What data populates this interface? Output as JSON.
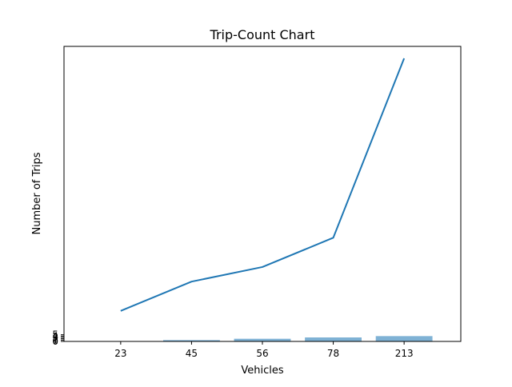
{
  "chart_data": {
    "type": "bar",
    "title": "Trip-Count Chart",
    "xlabel": "Vehicles",
    "ylabel": "Number of Trips",
    "categories": [
      "23",
      "45",
      "56",
      "78",
      "213"
    ],
    "series": [
      {
        "type": "bar",
        "values": [
          0,
          1,
          2,
          3,
          4
        ],
        "color": "#7fb2d5"
      },
      {
        "type": "line",
        "values": [
          23,
          45,
          56,
          78,
          213
        ],
        "color": "#1f77b4"
      }
    ],
    "yticks": [
      "0",
      "1",
      "2",
      "3",
      "4",
      "5"
    ],
    "ylim": [
      0,
      222
    ],
    "grid": false,
    "legend": "none"
  }
}
